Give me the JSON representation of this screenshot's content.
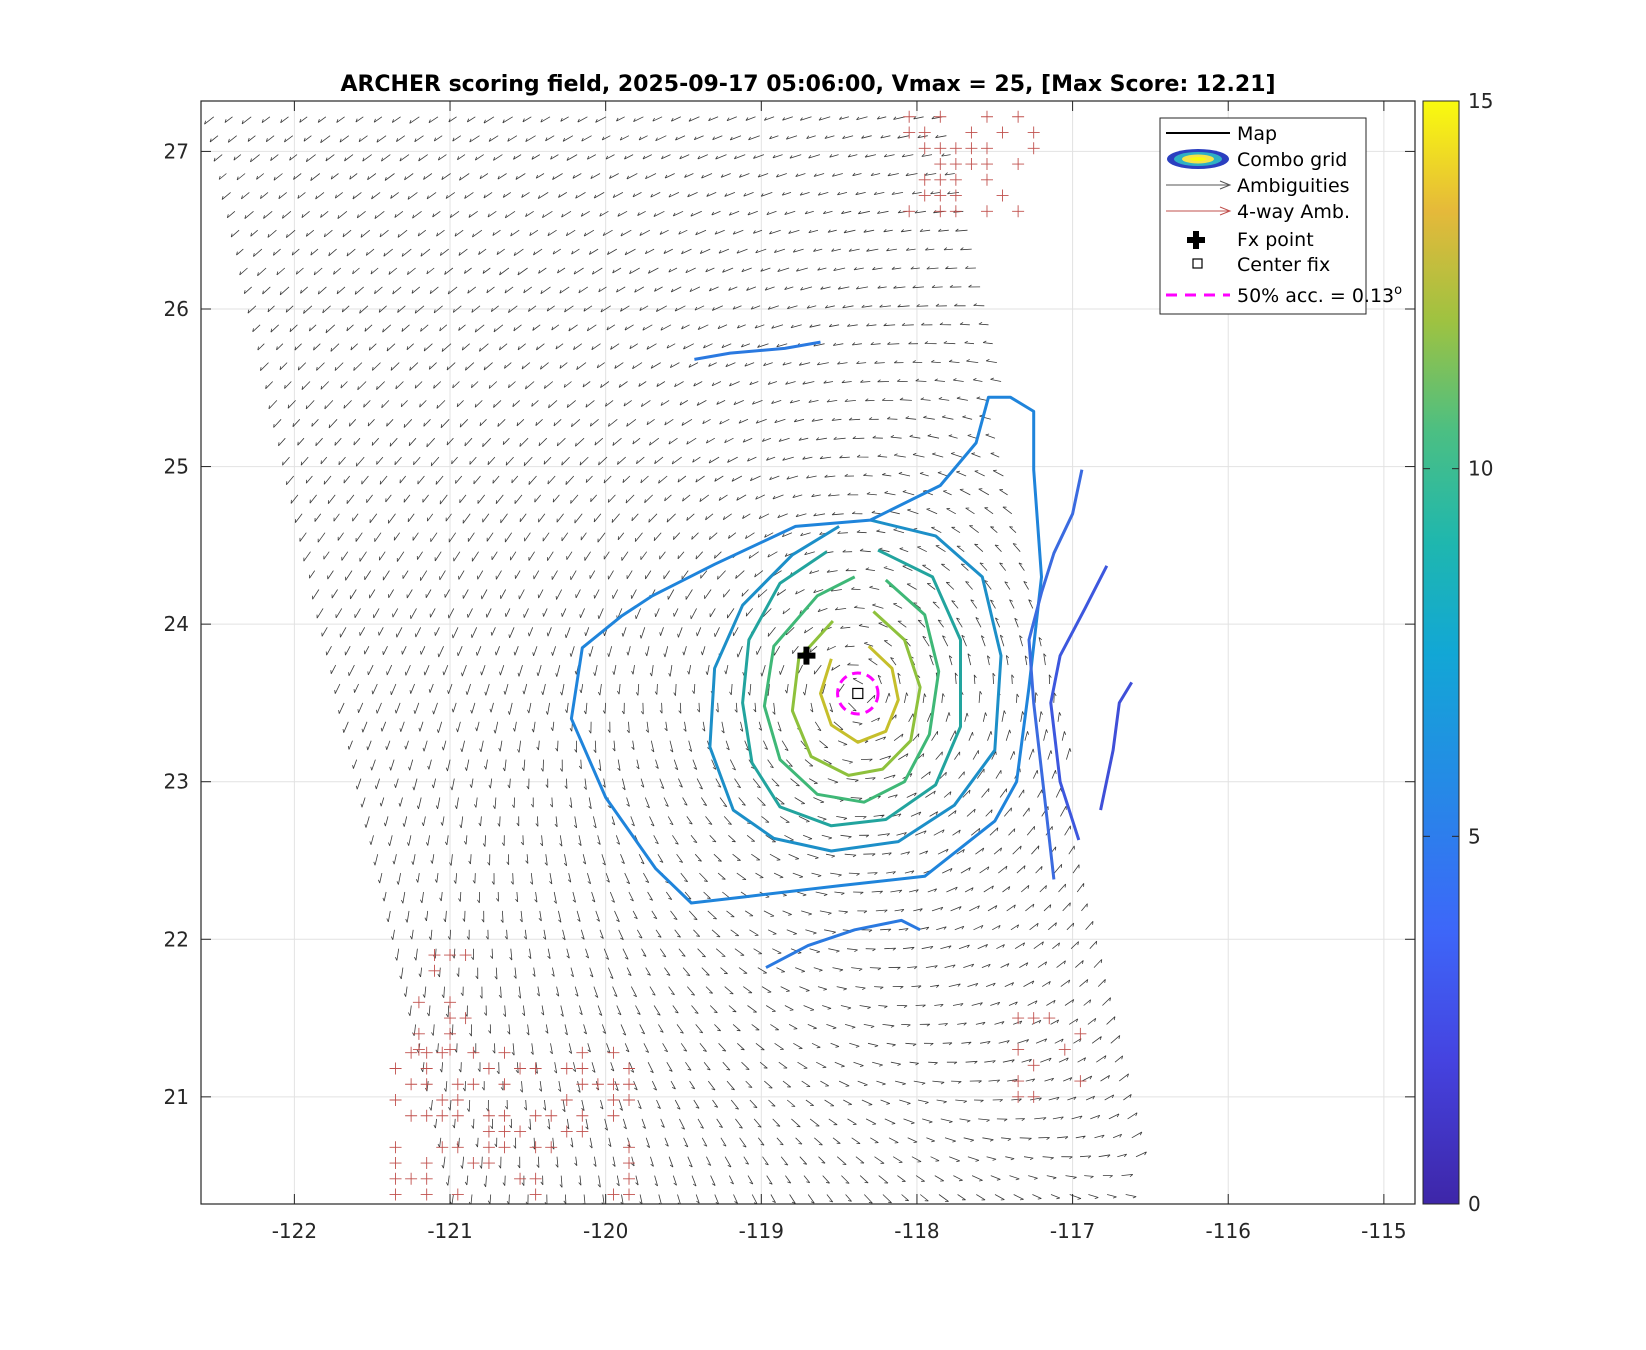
{
  "chart_data": {
    "type": "contour",
    "title": "ARCHER scoring field, 2025-09-17 05:06:00, Vmax = 25, [Max Score: 12.21]",
    "xlim": [
      -122.6,
      -114.8
    ],
    "ylim": [
      20.32,
      27.32
    ],
    "xticks": [
      -122,
      -121,
      -120,
      -119,
      -118,
      -117,
      -116,
      -115
    ],
    "yticks": [
      21,
      22,
      23,
      24,
      25,
      26,
      27
    ],
    "xtick_labels": [
      "-122",
      "-121",
      "-120",
      "-119",
      "-118",
      "-117",
      "-116",
      "-115"
    ],
    "ytick_labels": [
      "21",
      "22",
      "23",
      "24",
      "25",
      "26",
      "27"
    ],
    "grid": true,
    "center": {
      "lon": -118.38,
      "lat": 23.56
    },
    "fx_point": {
      "lon": -118.71,
      "lat": 23.8
    },
    "accuracy_radius_deg": 0.13,
    "colorbar": {
      "min": 0,
      "max": 15,
      "ticks": [
        0,
        5,
        10,
        15
      ],
      "tick_labels": [
        "0",
        "5",
        "10",
        "15"
      ]
    },
    "contours": [
      {
        "level": 11,
        "color": "#c6bf2b",
        "points": [
          [
            -118.31,
            23.86
          ],
          [
            -118.16,
            23.72
          ],
          [
            -118.12,
            23.52
          ],
          [
            -118.2,
            23.32
          ],
          [
            -118.38,
            23.25
          ],
          [
            -118.55,
            23.36
          ],
          [
            -118.62,
            23.56
          ],
          [
            -118.55,
            23.78
          ]
        ]
      },
      {
        "level": 9.5,
        "color": "#8ec13c",
        "points": [
          [
            -118.28,
            24.08
          ],
          [
            -118.08,
            23.9
          ],
          [
            -117.98,
            23.6
          ],
          [
            -118.04,
            23.26
          ],
          [
            -118.22,
            23.08
          ],
          [
            -118.44,
            23.04
          ],
          [
            -118.68,
            23.16
          ],
          [
            -118.8,
            23.45
          ],
          [
            -118.76,
            23.78
          ],
          [
            -118.54,
            24.02
          ]
        ]
      },
      {
        "level": 8.5,
        "color": "#3fb877",
        "points": [
          [
            -118.2,
            24.28
          ],
          [
            -117.95,
            24.06
          ],
          [
            -117.86,
            23.7
          ],
          [
            -117.92,
            23.3
          ],
          [
            -118.08,
            23.0
          ],
          [
            -118.34,
            22.87
          ],
          [
            -118.64,
            22.92
          ],
          [
            -118.88,
            23.14
          ],
          [
            -118.98,
            23.48
          ],
          [
            -118.92,
            23.86
          ],
          [
            -118.64,
            24.18
          ],
          [
            -118.4,
            24.3
          ]
        ]
      },
      {
        "level": 7.5,
        "color": "#22a49e",
        "points": [
          [
            -118.25,
            24.47
          ],
          [
            -117.9,
            24.3
          ],
          [
            -117.72,
            23.9
          ],
          [
            -117.72,
            23.35
          ],
          [
            -117.88,
            22.98
          ],
          [
            -118.2,
            22.76
          ],
          [
            -118.55,
            22.72
          ],
          [
            -118.88,
            22.84
          ],
          [
            -119.06,
            23.12
          ],
          [
            -119.12,
            23.5
          ],
          [
            -119.08,
            23.9
          ],
          [
            -118.88,
            24.26
          ],
          [
            -118.58,
            24.46
          ]
        ]
      },
      {
        "level": 6.5,
        "color": "#1c8fc8",
        "points": [
          [
            -118.3,
            24.66
          ],
          [
            -117.88,
            24.56
          ],
          [
            -117.58,
            24.3
          ],
          [
            -117.46,
            23.8
          ],
          [
            -117.5,
            23.2
          ],
          [
            -117.76,
            22.85
          ],
          [
            -118.12,
            22.62
          ],
          [
            -118.55,
            22.56
          ],
          [
            -118.92,
            22.64
          ],
          [
            -119.18,
            22.82
          ],
          [
            -119.33,
            23.22
          ],
          [
            -119.3,
            23.72
          ],
          [
            -119.12,
            24.12
          ],
          [
            -118.8,
            24.44
          ],
          [
            -118.5,
            24.62
          ]
        ]
      },
      {
        "level": 5.5,
        "color": "#1f84db",
        "points": [
          [
            -117.25,
            24.98
          ],
          [
            -117.2,
            24.3
          ],
          [
            -117.28,
            23.6
          ],
          [
            -117.36,
            23.0
          ],
          [
            -117.5,
            22.75
          ],
          [
            -117.95,
            22.4
          ],
          [
            -118.5,
            22.34
          ],
          [
            -119.1,
            22.27
          ],
          [
            -119.45,
            22.23
          ],
          [
            -119.68,
            22.45
          ],
          [
            -120.0,
            22.9
          ],
          [
            -120.22,
            23.4
          ],
          [
            -120.15,
            23.85
          ],
          [
            -119.9,
            24.05
          ],
          [
            -119.7,
            24.18
          ],
          [
            -119.3,
            24.38
          ],
          [
            -118.78,
            24.62
          ],
          [
            -118.3,
            24.66
          ],
          [
            -117.85,
            24.88
          ],
          [
            -117.62,
            25.15
          ],
          [
            -117.54,
            25.44
          ],
          [
            -117.4,
            25.44
          ],
          [
            -117.25,
            25.35
          ],
          [
            -117.25,
            24.98
          ]
        ]
      },
      {
        "level": 5,
        "color": "#2a79e0",
        "points": [
          [
            -119.43,
            25.68
          ],
          [
            -119.2,
            25.72
          ],
          [
            -118.85,
            25.75
          ],
          [
            -118.62,
            25.79
          ]
        ]
      },
      {
        "level": 5,
        "color": "#2a79e0",
        "points": [
          [
            -118.97,
            21.82
          ],
          [
            -118.7,
            21.96
          ],
          [
            -118.4,
            22.06
          ],
          [
            -118.1,
            22.12
          ],
          [
            -117.98,
            22.06
          ]
        ]
      },
      {
        "level": 4,
        "color": "#3b6be0",
        "points": [
          [
            -116.94,
            24.98
          ],
          [
            -117.0,
            24.7
          ],
          [
            -117.12,
            24.45
          ],
          [
            -117.2,
            24.2
          ],
          [
            -117.28,
            23.9
          ],
          [
            -117.25,
            23.5
          ],
          [
            -117.18,
            22.9
          ],
          [
            -117.12,
            22.38
          ]
        ]
      },
      {
        "level": 3.5,
        "color": "#3d57de",
        "points": [
          [
            -116.78,
            24.37
          ],
          [
            -116.92,
            24.1
          ],
          [
            -117.08,
            23.8
          ],
          [
            -117.14,
            23.5
          ],
          [
            -117.08,
            23.0
          ],
          [
            -116.96,
            22.63
          ]
        ]
      },
      {
        "level": 3,
        "color": "#3f4fd8",
        "points": [
          [
            -116.62,
            23.63
          ],
          [
            -116.7,
            23.5
          ],
          [
            -116.74,
            23.2
          ],
          [
            -116.82,
            22.82
          ]
        ]
      }
    ],
    "legend": {
      "placement": "top-right",
      "entries": [
        "Map",
        "Combo grid",
        "Ambiguities",
        "4-way Amb.",
        "Fx point",
        "Center fix",
        "50% acc. = 0.13"
      ],
      "accuracy_superscript": "o"
    }
  }
}
